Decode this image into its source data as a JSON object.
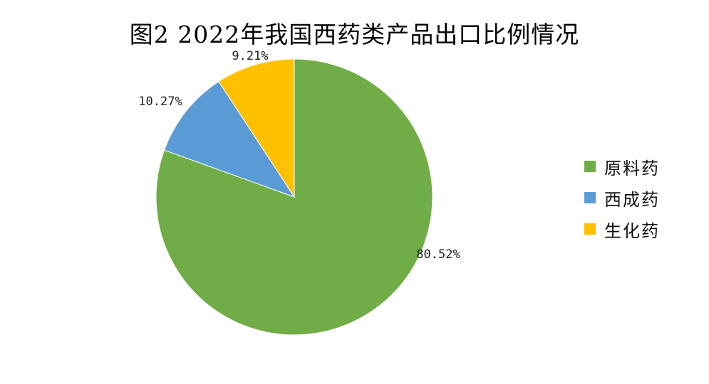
{
  "chart_data": {
    "type": "pie",
    "title": "图2 2022年我国西药类产品出口比例情况",
    "categories": [
      "原料药",
      "西成药",
      "生化药"
    ],
    "values": [
      80.52,
      10.27,
      9.21
    ],
    "value_labels": [
      "80.52%",
      "10.27%",
      "9.21%"
    ],
    "colors": [
      "#70AD47",
      "#5B9BD5",
      "#FFC000"
    ],
    "legend_position": "right",
    "start_angle": "top-clockwise"
  }
}
